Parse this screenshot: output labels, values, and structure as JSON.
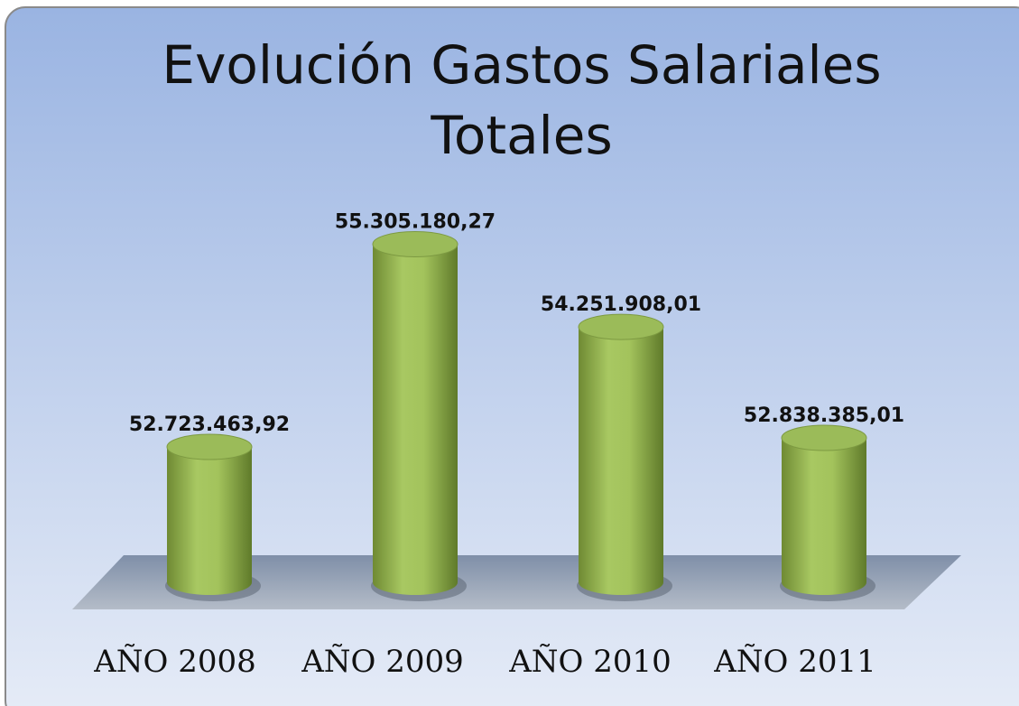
{
  "chart_data": {
    "type": "bar",
    "title": "Evolución Gastos Salariales Totales",
    "categories": [
      "AÑO 2008",
      "AÑO 2009",
      "AÑO 2010",
      "AÑO 2011"
    ],
    "values": [
      52723463.92,
      55305180.27,
      54251908.01,
      52838385.01
    ],
    "value_labels": [
      "52.723.463,92",
      "55.305.180,27",
      "54.251.908,01",
      "52.838.385,01"
    ],
    "color": "#9bbb59",
    "ylim": [
      51000000,
      56000000
    ]
  }
}
